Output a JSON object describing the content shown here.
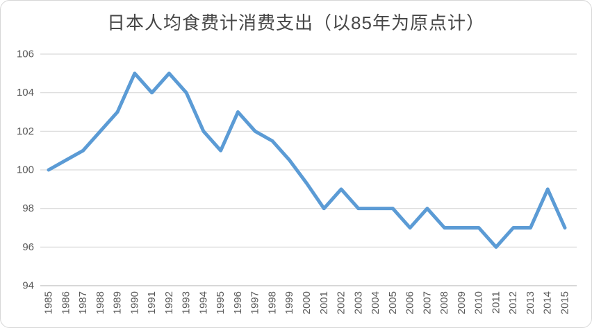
{
  "chart_data": {
    "type": "line",
    "title": "日本人均食费计消费支出（以85年为原点计）",
    "categories": [
      "1985",
      "1986",
      "1987",
      "1988",
      "1989",
      "1990",
      "1991",
      "1992",
      "1993",
      "1994",
      "1995",
      "1996",
      "1997",
      "1998",
      "1999",
      "2000",
      "2001",
      "2002",
      "2003",
      "2004",
      "2005",
      "2006",
      "2007",
      "2008",
      "2009",
      "2010",
      "2011",
      "2012",
      "2013",
      "2014",
      "2015"
    ],
    "values": [
      100,
      100.5,
      101,
      102,
      103,
      105,
      104,
      105,
      104,
      102,
      101,
      103,
      102,
      101.5,
      100.5,
      99.3,
      98,
      99,
      98,
      98,
      98,
      97,
      98,
      97,
      97,
      97,
      96,
      97,
      97,
      99,
      97
    ],
    "xlabel": "",
    "ylabel": "",
    "ylim": [
      94,
      106
    ],
    "yticks": [
      94,
      96,
      98,
      100,
      102,
      104,
      106
    ],
    "grid": true,
    "legend": "none",
    "x_tick_rotation": -90
  },
  "colors": {
    "line": "#5B9BD5",
    "gridline": "#D9D9D9",
    "axis_line": "#BFBFBF",
    "tick_text": "#595959",
    "title_text": "#474747",
    "background": "#FFFFFF"
  }
}
